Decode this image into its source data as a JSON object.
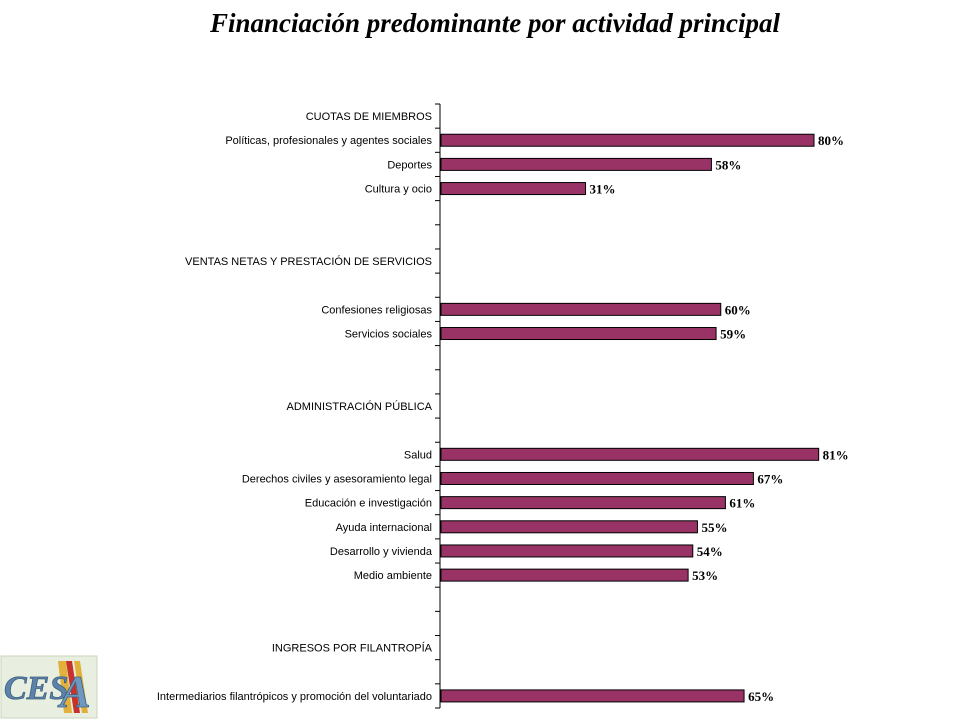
{
  "chart_data": {
    "type": "bar",
    "orientation": "horizontal",
    "title": "Financiación predominante por actividad principal",
    "xlabel": "",
    "ylabel": "",
    "xlim": [
      0,
      100
    ],
    "value_suffix": "%",
    "bar_color": "#993366",
    "categories": [
      "CUOTAS DE MIEMBROS",
      "Políticas, profesionales y agentes sociales",
      "Deportes",
      "Cultura y ocio",
      "",
      "",
      "VENTAS NETAS Y PRESTACIÓN DE SERVICIOS",
      "",
      "Confesiones religiosas",
      "Servicios sociales",
      "",
      "",
      "ADMINISTRACIÓN PÚBLICA",
      "",
      "Salud",
      "Derechos civiles y asesoramiento legal",
      "Educación e investigación",
      "Ayuda internacional",
      "Desarrollo y vivienda",
      "Medio ambiente",
      "",
      "",
      "INGRESOS POR FILANTROPÍA",
      "",
      "Intermediarios filantrópicos y promoción del voluntariado"
    ],
    "values": [
      null,
      80,
      58,
      31,
      null,
      null,
      null,
      null,
      60,
      59,
      null,
      null,
      null,
      null,
      81,
      67,
      61,
      55,
      54,
      53,
      null,
      null,
      null,
      null,
      65
    ],
    "data_labels": [
      "",
      "80%",
      "58%",
      "31%",
      "",
      "",
      "",
      "",
      "60%",
      "59%",
      "",
      "",
      "",
      "",
      "81%",
      "67%",
      "61%",
      "55%",
      "54%",
      "53%",
      "",
      "",
      "",
      "",
      "65%"
    ]
  },
  "logo": {
    "text": "CESA"
  }
}
